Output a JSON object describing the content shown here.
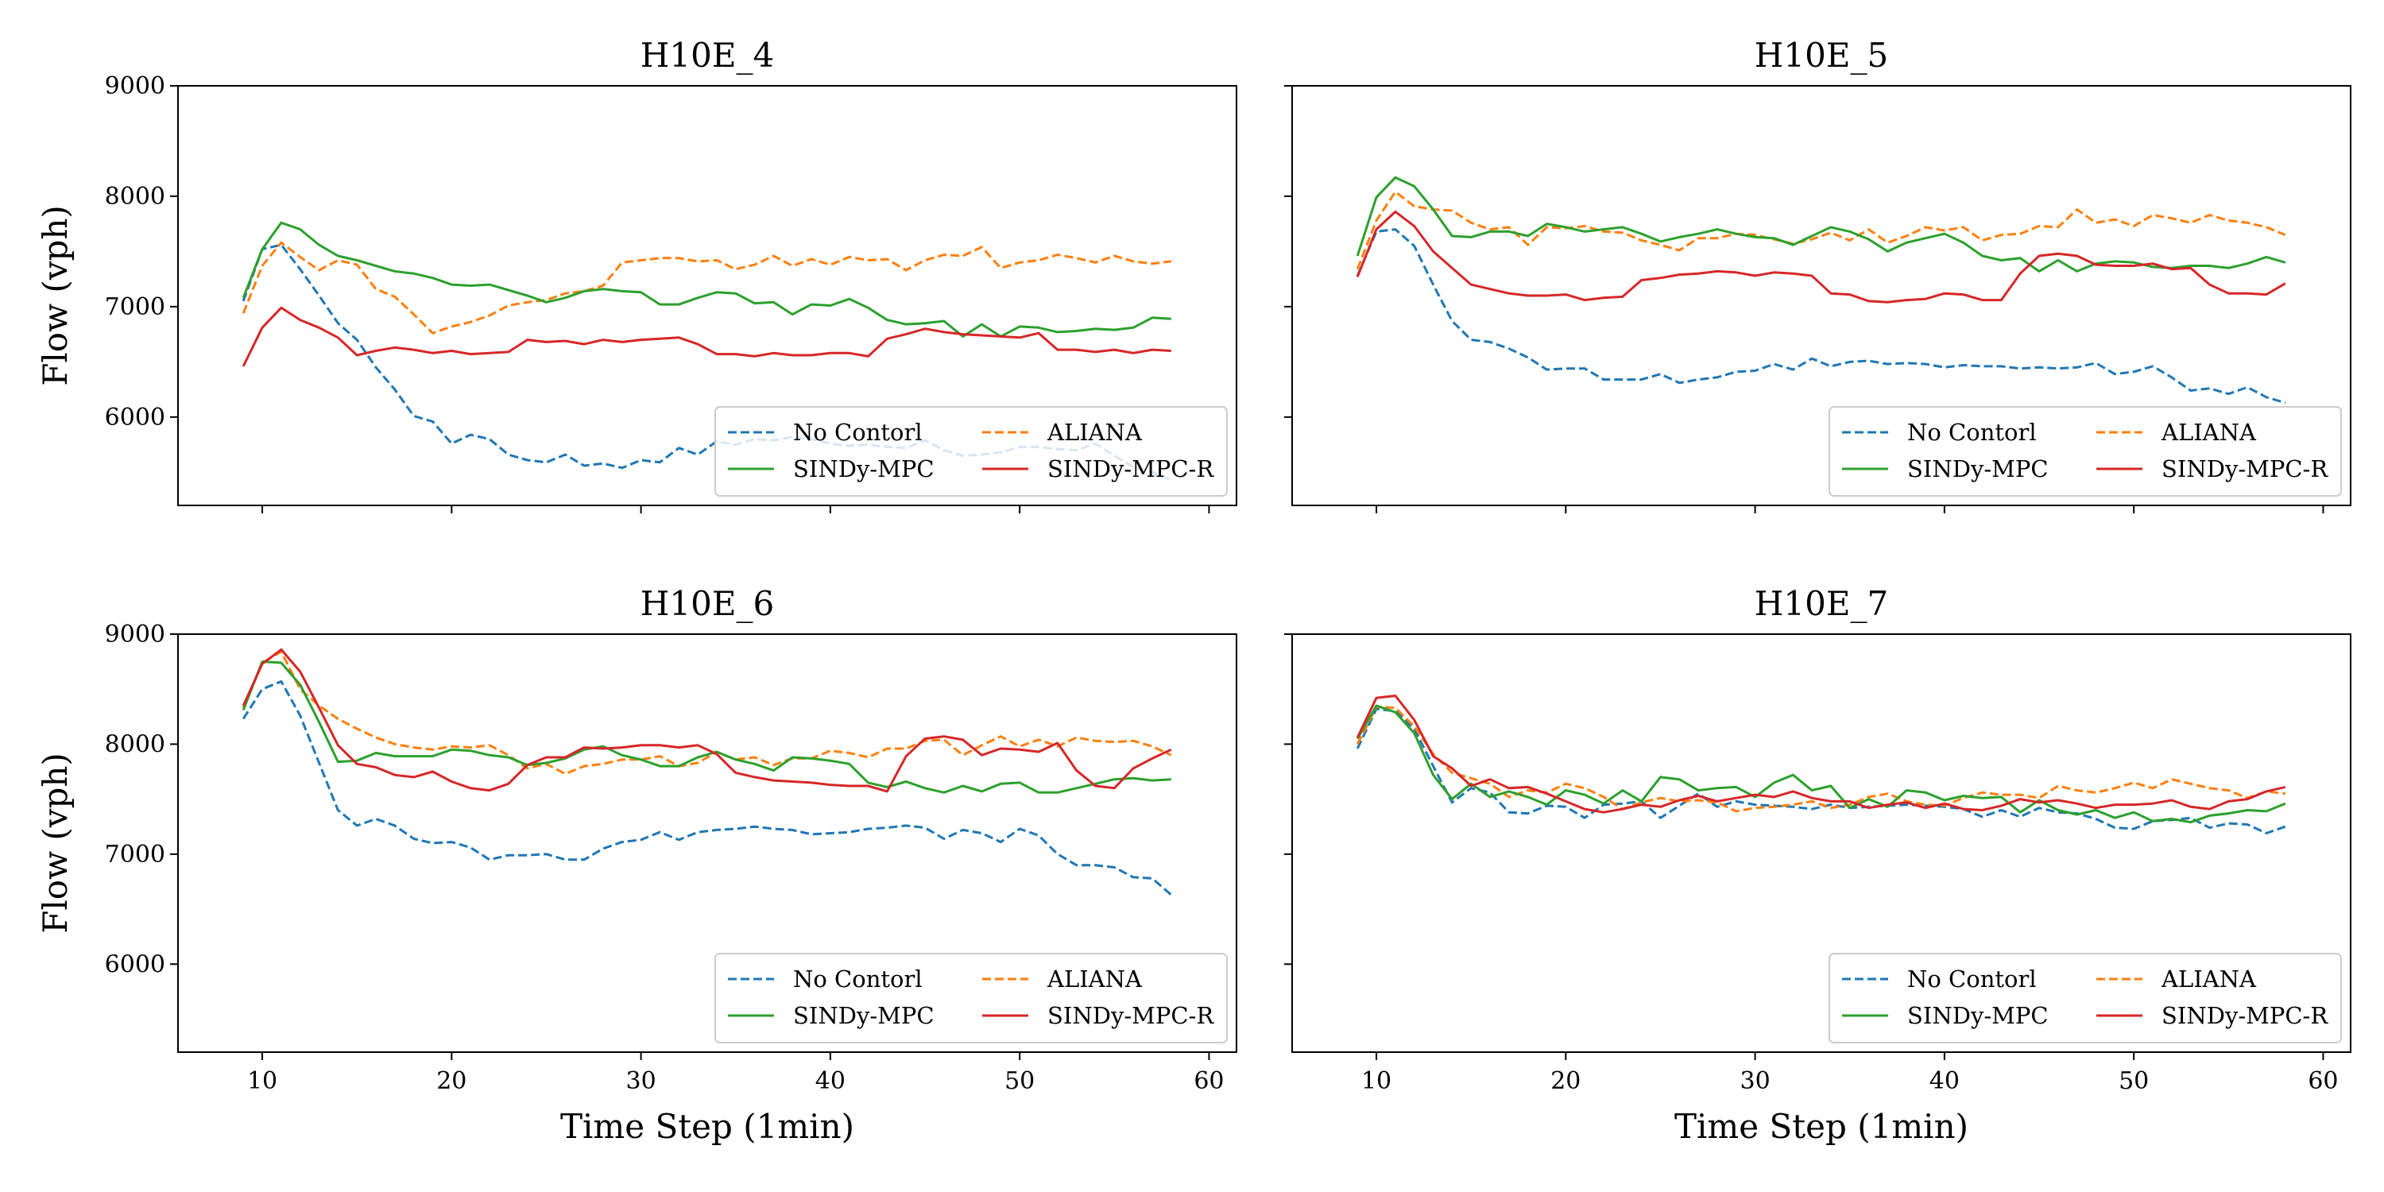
{
  "chart_data": [
    {
      "type": "line",
      "title": "H10E_4",
      "xlabel": "",
      "ylabel": "Flow (vph)",
      "xlim": [
        5.55,
        61.45
      ],
      "ylim": [
        5200,
        9000
      ],
      "x_ticks": [
        10,
        20,
        30,
        40,
        50,
        60
      ],
      "y_ticks": [
        6000,
        7000,
        8000,
        9000
      ],
      "x_tick_labels_visible": false,
      "y_tick_labels_visible": true,
      "legend_position": "lower-right",
      "x_start": 9,
      "series": [
        {
          "name": "No Contorl",
          "color": "#1f77b4",
          "dash": true,
          "values": [
            7050,
            7520,
            7560,
            7340,
            7100,
            6850,
            6700,
            6450,
            6250,
            6010,
            5960,
            5760,
            5840,
            5800,
            5660,
            5610,
            5590,
            5660,
            5560,
            5580,
            5540,
            5610,
            5590,
            5720,
            5660,
            5780,
            5750,
            5800,
            5790,
            5820,
            5800,
            5760,
            5740,
            5750,
            5730,
            5720,
            5790,
            5700,
            5650,
            5660,
            5680,
            5730,
            5730,
            5710,
            5700,
            5760,
            5650,
            5550,
            5500,
            5430
          ]
        },
        {
          "name": "ALIANA",
          "color": "#ff7f0e",
          "dash": true,
          "values": [
            6940,
            7370,
            7580,
            7450,
            7330,
            7420,
            7380,
            7160,
            7090,
            6930,
            6760,
            6820,
            6860,
            6920,
            7010,
            7040,
            7060,
            7120,
            7140,
            7190,
            7400,
            7420,
            7440,
            7440,
            7410,
            7420,
            7340,
            7380,
            7460,
            7370,
            7430,
            7380,
            7450,
            7420,
            7430,
            7330,
            7420,
            7470,
            7460,
            7540,
            7350,
            7400,
            7420,
            7470,
            7440,
            7400,
            7460,
            7410,
            7390,
            7410
          ]
        },
        {
          "name": "SINDy-MPC",
          "color": "#2ca02c",
          "dash": false,
          "values": [
            7080,
            7520,
            7760,
            7700,
            7560,
            7460,
            7420,
            7370,
            7320,
            7300,
            7260,
            7200,
            7190,
            7200,
            7150,
            7100,
            7040,
            7080,
            7140,
            7160,
            7140,
            7130,
            7020,
            7020,
            7080,
            7130,
            7120,
            7030,
            7040,
            6930,
            7020,
            7010,
            7070,
            6990,
            6880,
            6840,
            6850,
            6870,
            6730,
            6840,
            6730,
            6820,
            6810,
            6770,
            6780,
            6800,
            6790,
            6810,
            6900,
            6890
          ]
        },
        {
          "name": "SINDy-MPC-R",
          "color": "#d62728",
          "dash": false,
          "values": [
            6460,
            6810,
            6990,
            6880,
            6810,
            6720,
            6560,
            6600,
            6630,
            6610,
            6580,
            6600,
            6570,
            6580,
            6590,
            6700,
            6680,
            6690,
            6660,
            6700,
            6680,
            6700,
            6710,
            6720,
            6660,
            6570,
            6570,
            6550,
            6580,
            6560,
            6560,
            6580,
            6580,
            6550,
            6710,
            6750,
            6800,
            6770,
            6750,
            6740,
            6730,
            6720,
            6760,
            6610,
            6610,
            6590,
            6610,
            6580,
            6610,
            6600
          ]
        }
      ]
    },
    {
      "type": "line",
      "title": "H10E_5",
      "xlabel": "",
      "ylabel": "",
      "xlim": [
        5.55,
        61.45
      ],
      "ylim": [
        5200,
        9000
      ],
      "x_ticks": [
        10,
        20,
        30,
        40,
        50,
        60
      ],
      "y_ticks": [
        6000,
        7000,
        8000,
        9000
      ],
      "x_tick_labels_visible": false,
      "y_tick_labels_visible": false,
      "legend_position": "lower-right",
      "x_start": 9,
      "series": [
        {
          "name": "No Contorl",
          "color": "#1f77b4",
          "dash": true,
          "values": [
            7280,
            7680,
            7700,
            7550,
            7200,
            6870,
            6700,
            6680,
            6620,
            6540,
            6430,
            6440,
            6440,
            6340,
            6340,
            6340,
            6390,
            6310,
            6340,
            6360,
            6410,
            6420,
            6480,
            6430,
            6530,
            6460,
            6500,
            6510,
            6480,
            6490,
            6480,
            6450,
            6470,
            6460,
            6460,
            6440,
            6450,
            6440,
            6450,
            6490,
            6390,
            6410,
            6460,
            6360,
            6240,
            6260,
            6210,
            6270,
            6180,
            6130
          ]
        },
        {
          "name": "ALIANA",
          "color": "#ff7f0e",
          "dash": true,
          "values": [
            7340,
            7780,
            8040,
            7910,
            7880,
            7870,
            7760,
            7700,
            7720,
            7560,
            7720,
            7710,
            7730,
            7680,
            7670,
            7600,
            7560,
            7510,
            7620,
            7620,
            7660,
            7650,
            7610,
            7570,
            7610,
            7670,
            7600,
            7700,
            7580,
            7640,
            7720,
            7690,
            7720,
            7600,
            7650,
            7660,
            7730,
            7720,
            7880,
            7760,
            7790,
            7730,
            7830,
            7800,
            7760,
            7830,
            7780,
            7760,
            7720,
            7650
          ]
        },
        {
          "name": "SINDy-MPC",
          "color": "#2ca02c",
          "dash": false,
          "values": [
            7460,
            7990,
            8170,
            8090,
            7880,
            7640,
            7630,
            7680,
            7680,
            7640,
            7750,
            7720,
            7680,
            7700,
            7720,
            7660,
            7590,
            7630,
            7660,
            7700,
            7660,
            7630,
            7620,
            7560,
            7640,
            7720,
            7680,
            7610,
            7500,
            7580,
            7620,
            7660,
            7580,
            7460,
            7420,
            7440,
            7320,
            7420,
            7320,
            7390,
            7410,
            7400,
            7360,
            7350,
            7370,
            7370,
            7350,
            7390,
            7450,
            7400
          ]
        },
        {
          "name": "SINDy-MPC-R",
          "color": "#d62728",
          "dash": false,
          "values": [
            7270,
            7700,
            7860,
            7730,
            7500,
            7350,
            7200,
            7160,
            7120,
            7100,
            7100,
            7110,
            7060,
            7080,
            7090,
            7240,
            7260,
            7290,
            7300,
            7320,
            7310,
            7280,
            7310,
            7300,
            7280,
            7120,
            7110,
            7050,
            7040,
            7060,
            7070,
            7120,
            7110,
            7060,
            7060,
            7300,
            7460,
            7480,
            7460,
            7380,
            7370,
            7370,
            7390,
            7340,
            7350,
            7200,
            7120,
            7120,
            7110,
            7210
          ]
        }
      ]
    },
    {
      "type": "line",
      "title": "H10E_6",
      "xlabel": "Time Step (1min)",
      "ylabel": "Flow (vph)",
      "xlim": [
        5.55,
        61.45
      ],
      "ylim": [
        5200,
        9000
      ],
      "x_ticks": [
        10,
        20,
        30,
        40,
        50,
        60
      ],
      "y_ticks": [
        6000,
        7000,
        8000,
        9000
      ],
      "x_tick_labels_visible": true,
      "y_tick_labels_visible": true,
      "legend_position": "lower-right",
      "x_start": 9,
      "series": [
        {
          "name": "No Contorl",
          "color": "#1f77b4",
          "dash": true,
          "values": [
            8230,
            8500,
            8570,
            8260,
            7830,
            7400,
            7260,
            7320,
            7260,
            7140,
            7100,
            7110,
            7060,
            6950,
            6990,
            6990,
            7000,
            6950,
            6950,
            7050,
            7110,
            7130,
            7200,
            7130,
            7200,
            7220,
            7230,
            7250,
            7230,
            7220,
            7180,
            7190,
            7200,
            7230,
            7240,
            7260,
            7240,
            7140,
            7220,
            7190,
            7110,
            7230,
            7170,
            7000,
            6900,
            6900,
            6880,
            6790,
            6780,
            6630
          ]
        },
        {
          "name": "ALIANA",
          "color": "#ff7f0e",
          "dash": true,
          "values": [
            8330,
            8740,
            8840,
            8500,
            8350,
            8230,
            8140,
            8060,
            8000,
            7970,
            7950,
            7980,
            7970,
            7990,
            7900,
            7780,
            7820,
            7730,
            7800,
            7820,
            7860,
            7860,
            7890,
            7800,
            7830,
            7930,
            7860,
            7880,
            7810,
            7870,
            7870,
            7940,
            7920,
            7880,
            7960,
            7960,
            8030,
            8040,
            7900,
            7990,
            8070,
            7980,
            8040,
            7980,
            8060,
            8030,
            8020,
            8030,
            7980,
            7900
          ]
        },
        {
          "name": "SINDy-MPC",
          "color": "#2ca02c",
          "dash": false,
          "values": [
            8310,
            8750,
            8740,
            8540,
            8200,
            7840,
            7850,
            7920,
            7890,
            7890,
            7890,
            7950,
            7940,
            7900,
            7880,
            7810,
            7830,
            7870,
            7950,
            7980,
            7900,
            7860,
            7800,
            7800,
            7880,
            7930,
            7860,
            7820,
            7760,
            7880,
            7870,
            7850,
            7820,
            7650,
            7610,
            7660,
            7600,
            7560,
            7620,
            7570,
            7640,
            7650,
            7560,
            7560,
            7600,
            7640,
            7680,
            7690,
            7670,
            7680
          ]
        },
        {
          "name": "SINDy-MPC-R",
          "color": "#d62728",
          "dash": false,
          "values": [
            8350,
            8730,
            8860,
            8660,
            8330,
            7990,
            7820,
            7790,
            7720,
            7700,
            7750,
            7660,
            7600,
            7580,
            7640,
            7810,
            7880,
            7880,
            7970,
            7960,
            7970,
            7990,
            7990,
            7970,
            7990,
            7910,
            7740,
            7700,
            7670,
            7660,
            7650,
            7630,
            7620,
            7620,
            7570,
            7890,
            8050,
            8070,
            8040,
            7900,
            7960,
            7950,
            7930,
            8010,
            7760,
            7620,
            7600,
            7780,
            7870,
            7950
          ]
        }
      ]
    },
    {
      "type": "line",
      "title": "H10E_7",
      "xlabel": "Time Step (1min)",
      "ylabel": "",
      "xlim": [
        5.55,
        61.45
      ],
      "ylim": [
        5200,
        9000
      ],
      "x_ticks": [
        10,
        20,
        30,
        40,
        50,
        60
      ],
      "y_ticks": [
        6000,
        7000,
        8000,
        9000
      ],
      "x_tick_labels_visible": true,
      "y_tick_labels_visible": false,
      "legend_position": "lower-right",
      "x_start": 9,
      "series": [
        {
          "name": "No Contorl",
          "color": "#1f77b4",
          "dash": true,
          "values": [
            7960,
            8320,
            8300,
            8140,
            7800,
            7470,
            7600,
            7560,
            7380,
            7370,
            7440,
            7430,
            7330,
            7450,
            7460,
            7480,
            7330,
            7440,
            7550,
            7430,
            7480,
            7450,
            7440,
            7430,
            7410,
            7450,
            7420,
            7430,
            7440,
            7450,
            7440,
            7430,
            7410,
            7340,
            7400,
            7340,
            7420,
            7380,
            7370,
            7320,
            7240,
            7230,
            7300,
            7310,
            7330,
            7240,
            7280,
            7270,
            7190,
            7250
          ]
        },
        {
          "name": "ALIANA",
          "color": "#ff7f0e",
          "dash": true,
          "values": [
            8000,
            8340,
            8330,
            8160,
            7910,
            7740,
            7690,
            7640,
            7520,
            7580,
            7560,
            7640,
            7600,
            7520,
            7410,
            7470,
            7510,
            7480,
            7490,
            7470,
            7390,
            7420,
            7430,
            7450,
            7480,
            7420,
            7450,
            7520,
            7550,
            7480,
            7450,
            7440,
            7510,
            7560,
            7540,
            7540,
            7510,
            7620,
            7580,
            7560,
            7600,
            7650,
            7600,
            7680,
            7640,
            7600,
            7580,
            7510,
            7570,
            7550
          ]
        },
        {
          "name": "SINDy-MPC",
          "color": "#2ca02c",
          "dash": false,
          "values": [
            8050,
            8350,
            8290,
            8100,
            7720,
            7500,
            7640,
            7520,
            7570,
            7520,
            7450,
            7580,
            7540,
            7460,
            7580,
            7480,
            7700,
            7680,
            7580,
            7600,
            7610,
            7520,
            7650,
            7720,
            7580,
            7620,
            7420,
            7500,
            7430,
            7580,
            7560,
            7490,
            7530,
            7510,
            7520,
            7380,
            7490,
            7400,
            7360,
            7400,
            7330,
            7380,
            7300,
            7320,
            7290,
            7350,
            7370,
            7400,
            7390,
            7460
          ]
        },
        {
          "name": "SINDy-MPC-R",
          "color": "#d62728",
          "dash": false,
          "values": [
            8060,
            8420,
            8440,
            8220,
            7890,
            7780,
            7620,
            7680,
            7600,
            7610,
            7550,
            7480,
            7410,
            7380,
            7410,
            7450,
            7430,
            7490,
            7530,
            7480,
            7510,
            7540,
            7520,
            7570,
            7510,
            7480,
            7480,
            7420,
            7450,
            7470,
            7420,
            7460,
            7410,
            7400,
            7440,
            7500,
            7470,
            7490,
            7460,
            7420,
            7450,
            7450,
            7460,
            7490,
            7430,
            7410,
            7480,
            7500,
            7570,
            7610
          ]
        }
      ]
    }
  ]
}
